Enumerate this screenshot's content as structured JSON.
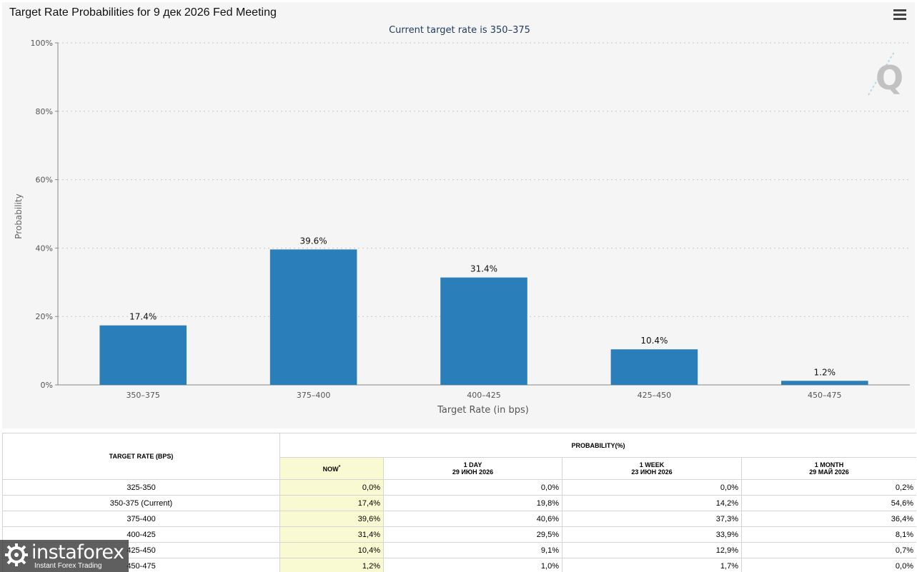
{
  "header": {
    "title": "Target Rate Probabilities for 9 дек 2026 Fed Meeting",
    "menu_icon": "hamburger-menu-icon"
  },
  "chart_data": {
    "type": "bar",
    "subtitle": "Current target rate is 350–375",
    "categories": [
      "350–375",
      "375–400",
      "400–425",
      "425–450",
      "450–475"
    ],
    "values": [
      17.4,
      39.6,
      31.4,
      10.4,
      1.2
    ],
    "data_labels": [
      "17.4%",
      "39.6%",
      "31.4%",
      "10.4%",
      "1.2%"
    ],
    "xlabel": "Target Rate (in bps)",
    "ylabel": "Probability",
    "ylim": [
      0,
      100
    ],
    "yticks": [
      0,
      20,
      40,
      60,
      80,
      100
    ],
    "ytick_labels": [
      "0%",
      "20%",
      "40%",
      "60%",
      "80%",
      "100%"
    ],
    "grid": true,
    "bar_color": "#2a7fba"
  },
  "table": {
    "header_rate": "TARGET RATE (BPS)",
    "header_prob": "PROBABILITY(%)",
    "columns": [
      {
        "line1": "NOW",
        "line2": "",
        "sup": "*"
      },
      {
        "line1": "1 DAY",
        "line2": "29 ИЮН 2026"
      },
      {
        "line1": "1 WEEK",
        "line2": "23 ИЮН 2026"
      },
      {
        "line1": "1 MONTH",
        "line2": "29 МАЙ 2026"
      }
    ],
    "rows": [
      {
        "rate": "325-350",
        "now": "0,0%",
        "day": "0,0%",
        "week": "0,0%",
        "month": "0,2%"
      },
      {
        "rate": "350-375 (Current)",
        "now": "17,4%",
        "day": "19,8%",
        "week": "14,2%",
        "month": "54,6%"
      },
      {
        "rate": "375-400",
        "now": "39,6%",
        "day": "40,6%",
        "week": "37,3%",
        "month": "36,4%"
      },
      {
        "rate": "400-425",
        "now": "31,4%",
        "day": "29,5%",
        "week": "33,9%",
        "month": "8,1%"
      },
      {
        "rate": "425-450",
        "now": "10,4%",
        "day": "9,1%",
        "week": "12,9%",
        "month": "0,7%"
      },
      {
        "rate": "450-475",
        "now": "1,2%",
        "day": "1,0%",
        "week": "1,7%",
        "month": "0,0%"
      }
    ]
  },
  "watermark": {
    "name": "instaforex",
    "tagline": "Instant Forex Trading"
  }
}
